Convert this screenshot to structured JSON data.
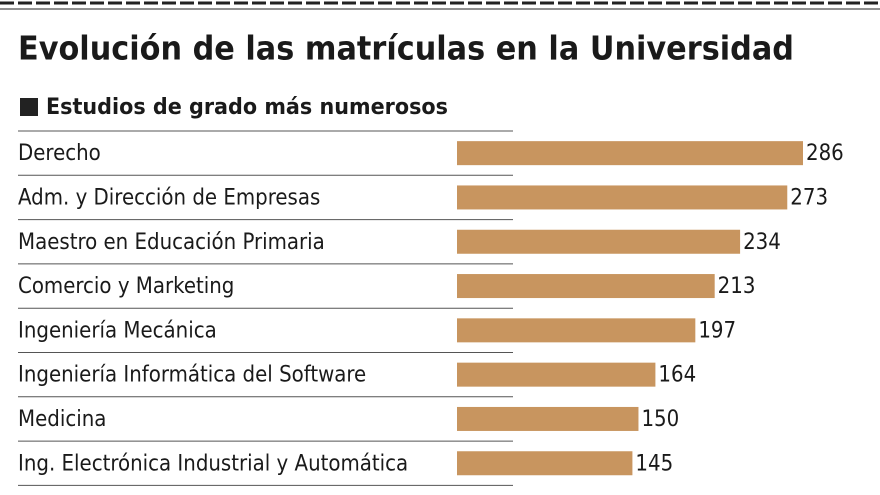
{
  "chart_data": {
    "type": "bar",
    "title": "Evolución de las matrículas en la Universidad",
    "subtitle": "Estudios de grado más numerosos",
    "categories": [
      "Derecho",
      "Adm. y Dirección de Empresas",
      "Maestro en Educación Primaria",
      "Comercio y Marketing",
      "Ingeniería Mecánica",
      "Ingeniería Informática del Software",
      "Medicina",
      "Ing. Electrónica Industrial y Automática"
    ],
    "values": [
      286,
      273,
      234,
      213,
      197,
      164,
      150,
      145
    ],
    "color": "#c8955f"
  }
}
